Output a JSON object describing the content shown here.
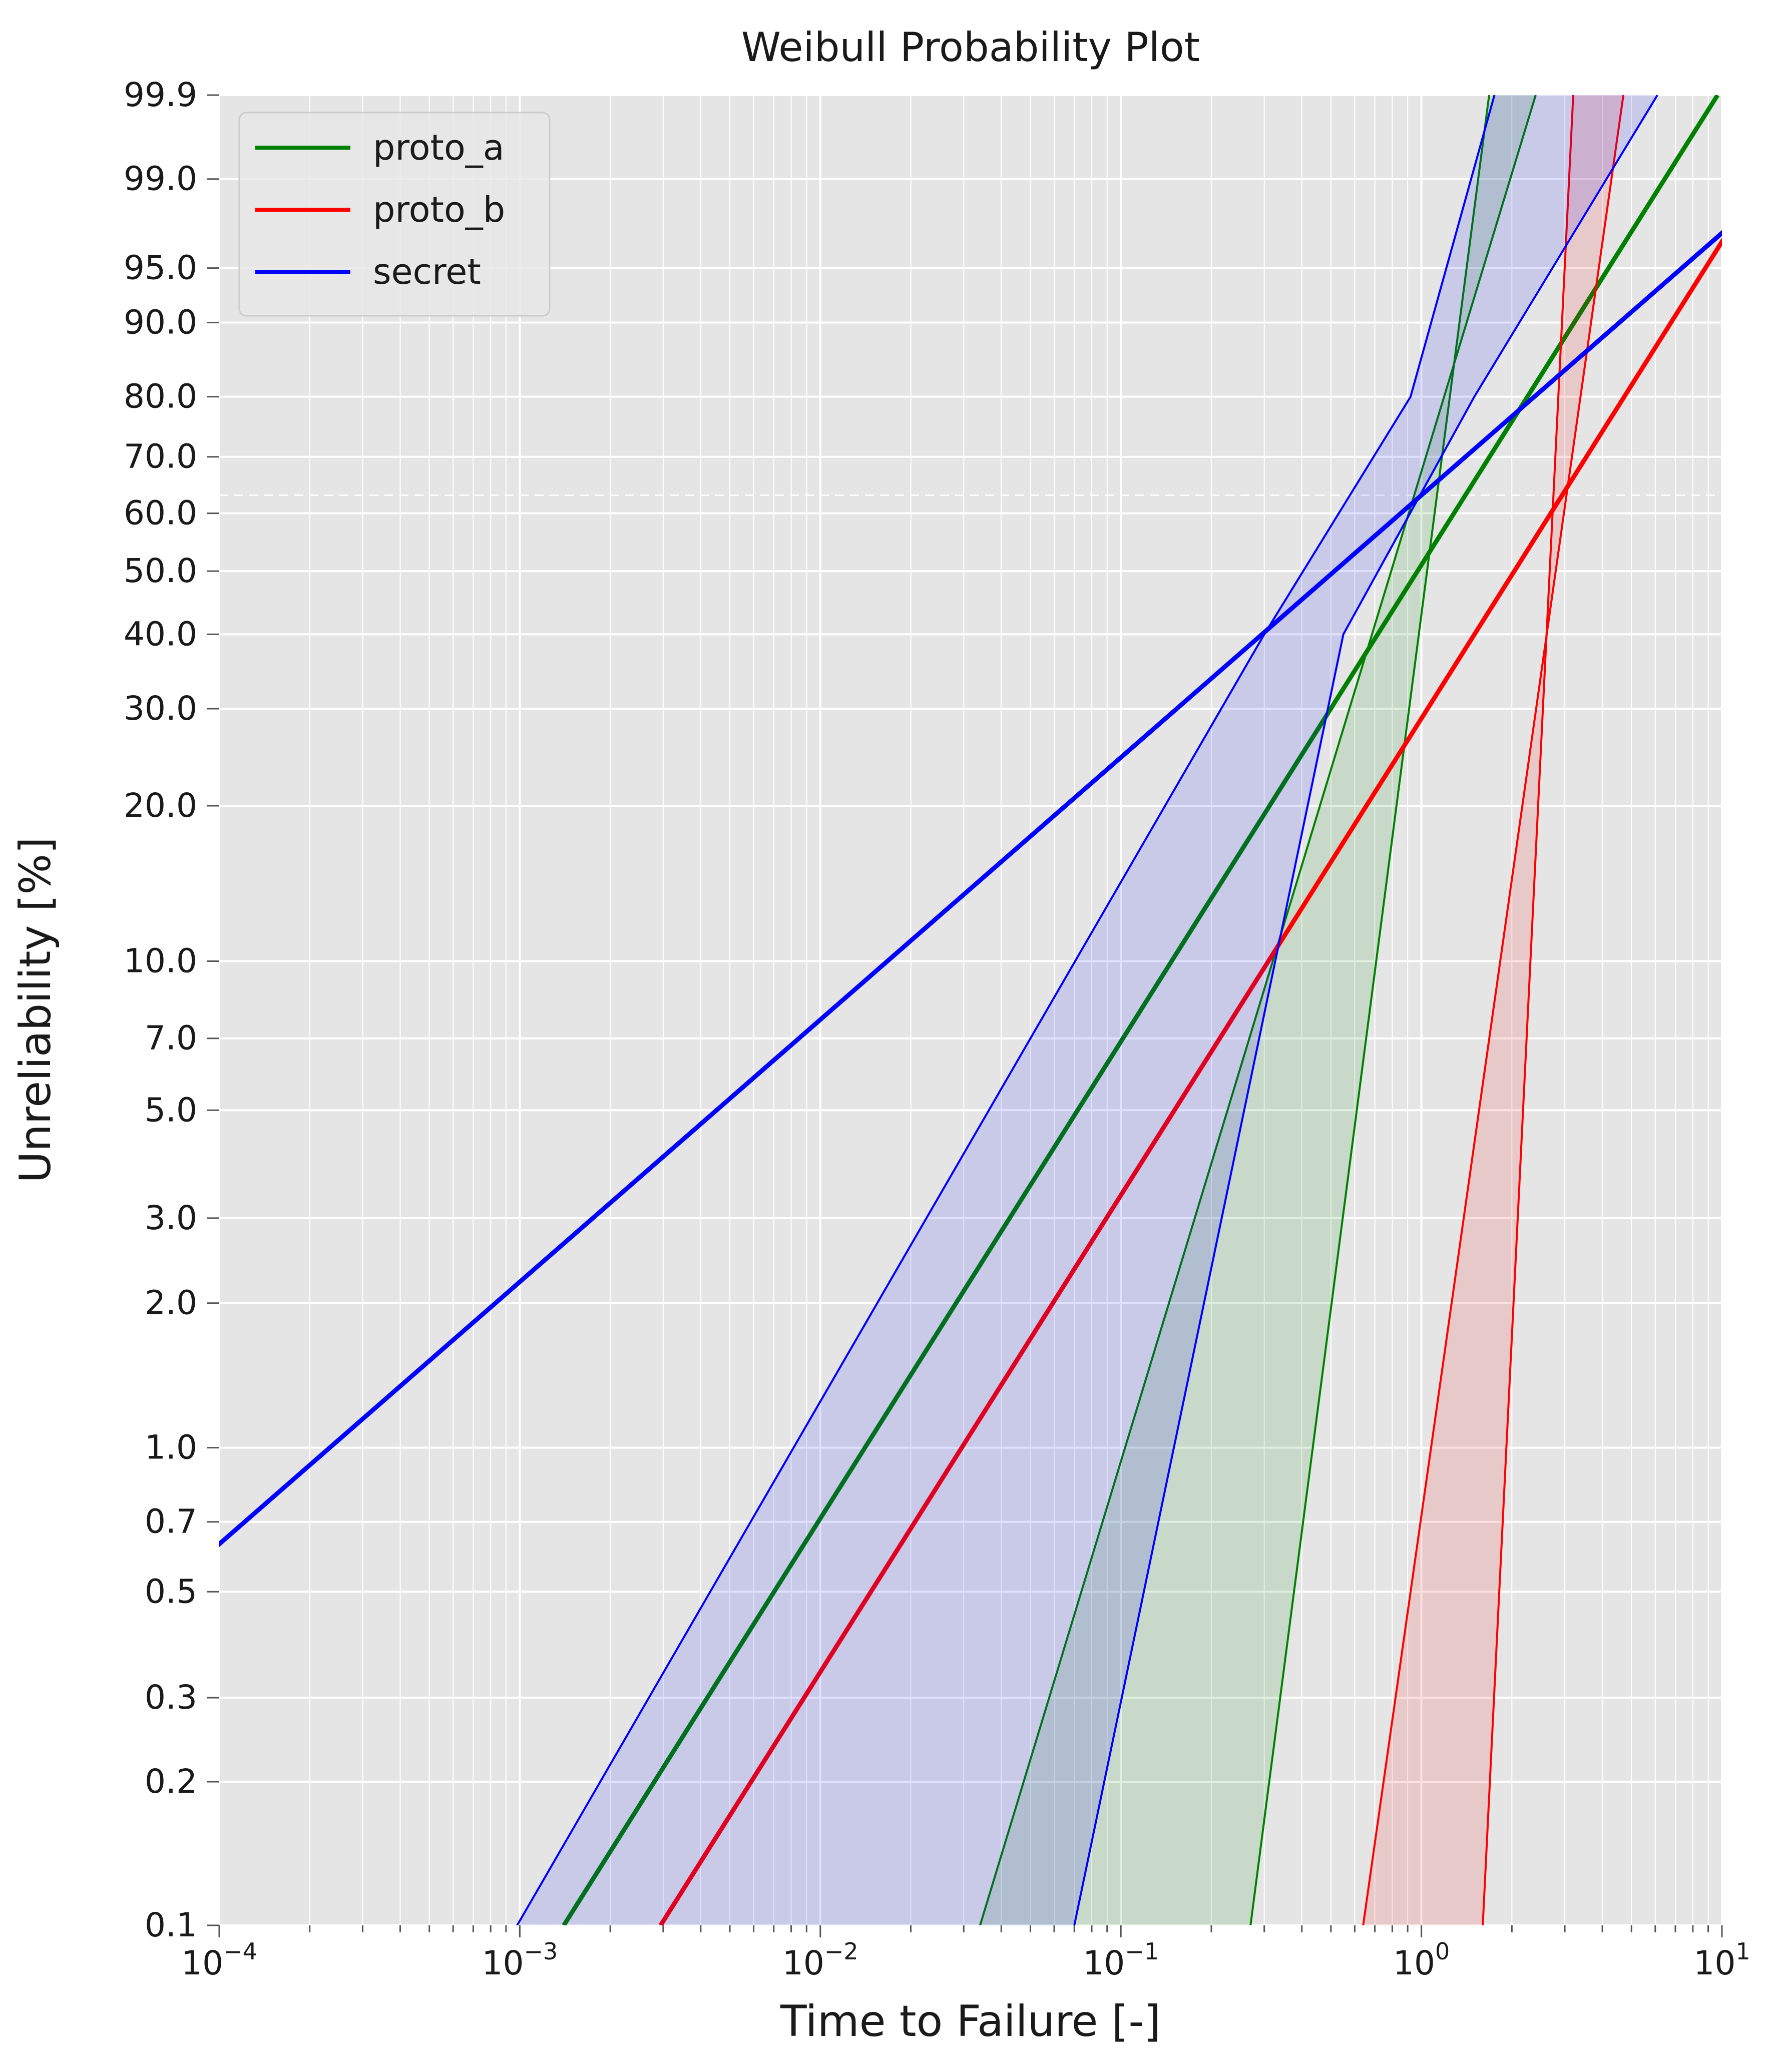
{
  "chart_data": {
    "type": "line",
    "title": "Weibull Probability Plot",
    "xlabel": "Time to Failure [-]",
    "ylabel": "Unreliability [%]",
    "xscale": "log",
    "yscale": "weibull",
    "xlim": [
      0.0001,
      10
    ],
    "ylim": [
      0.1,
      99.9
    ],
    "grid": true,
    "legend": "top-left",
    "x_ticks": [
      {
        "value": 0.0001,
        "base": "10",
        "exp": "−4"
      },
      {
        "value": 0.001,
        "base": "10",
        "exp": "−3"
      },
      {
        "value": 0.01,
        "base": "10",
        "exp": "−2"
      },
      {
        "value": 0.1,
        "base": "10",
        "exp": "−1"
      },
      {
        "value": 1,
        "base": "10",
        "exp": "0"
      },
      {
        "value": 10,
        "base": "10",
        "exp": "1"
      }
    ],
    "y_ticks": [
      {
        "value": 0.1,
        "label": "0.1"
      },
      {
        "value": 0.2,
        "label": "0.2"
      },
      {
        "value": 0.3,
        "label": "0.3"
      },
      {
        "value": 0.5,
        "label": "0.5"
      },
      {
        "value": 0.7,
        "label": "0.7"
      },
      {
        "value": 1.0,
        "label": "1.0"
      },
      {
        "value": 2.0,
        "label": "2.0"
      },
      {
        "value": 3.0,
        "label": "3.0"
      },
      {
        "value": 5.0,
        "label": "5.0"
      },
      {
        "value": 7.0,
        "label": "7.0"
      },
      {
        "value": 10.0,
        "label": "10.0"
      },
      {
        "value": 20.0,
        "label": "20.0"
      },
      {
        "value": 30.0,
        "label": "30.0"
      },
      {
        "value": 40.0,
        "label": "40.0"
      },
      {
        "value": 50.0,
        "label": "50.0"
      },
      {
        "value": 60.0,
        "label": "60.0"
      },
      {
        "value": 70.0,
        "label": "70.0"
      },
      {
        "value": 80.0,
        "label": "80.0"
      },
      {
        "value": 90.0,
        "label": "90.0"
      },
      {
        "value": 95.0,
        "label": "95.0"
      },
      {
        "value": 99.0,
        "label": "99.0"
      },
      {
        "value": 99.9,
        "label": "99.9"
      }
    ],
    "reference_line": {
      "unreliability": 63.2,
      "style": "dashed"
    },
    "series": [
      {
        "name": "proto_a",
        "color": "#008000",
        "fit": {
          "eta": 1.4,
          "beta": 1.0
        },
        "band_lower": [
          [
            0.27,
            0.1
          ],
          [
            1.68,
            99.9
          ]
        ],
        "band_upper": [
          [
            0.034,
            0.1
          ],
          [
            2.4,
            99.9
          ]
        ],
        "fill_opacity": 0.12
      },
      {
        "name": "proto_b",
        "color": "#ff0000",
        "fit": {
          "eta": 2.94,
          "beta": 1.0
        },
        "band_lower": [
          [
            1.6,
            0.1
          ],
          [
            3.2,
            99.9
          ]
        ],
        "band_upper": [
          [
            0.64,
            0.1
          ],
          [
            4.7,
            99.9
          ]
        ],
        "fill_opacity": 0.12
      },
      {
        "name": "secret",
        "color": "#0000ff",
        "fit": {
          "eta": 1.0,
          "beta": 0.55
        },
        "band_lower": [
          [
            0.07,
            0.1
          ],
          [
            0.55,
            40
          ],
          [
            1.5,
            80
          ],
          [
            6.1,
            99.9
          ]
        ],
        "band_upper": [
          [
            0.00098,
            0.1
          ],
          [
            0.3,
            40
          ],
          [
            0.92,
            80
          ],
          [
            1.75,
            99.9
          ]
        ],
        "fill_opacity": 0.12
      }
    ]
  }
}
